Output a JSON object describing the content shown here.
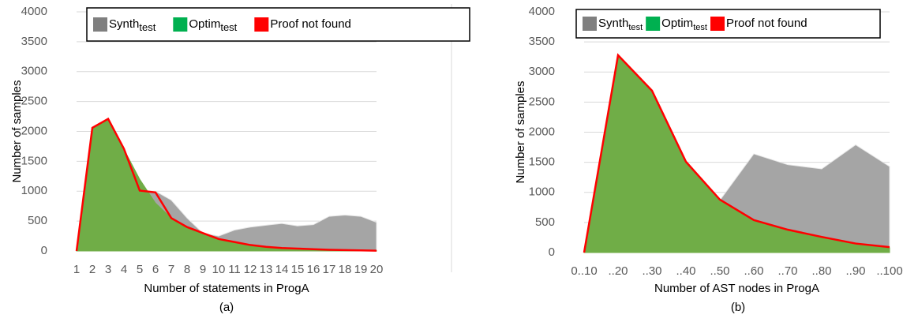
{
  "chart_data": [
    {
      "type": "area",
      "xlabel": "Number of statements in ProgA",
      "ylabel": "Number of samples",
      "caption": "(a)",
      "categories": [
        "1",
        "2",
        "3",
        "4",
        "5",
        "6",
        "7",
        "8",
        "9",
        "10",
        "11",
        "12",
        "13",
        "14",
        "15",
        "16",
        "17",
        "18",
        "19",
        "20"
      ],
      "ylim": [
        0,
        4000
      ],
      "yticks": [
        0,
        500,
        1000,
        1500,
        2000,
        2500,
        3000,
        3500,
        4000
      ],
      "grid": true,
      "series": [
        {
          "name": "Synth",
          "subscript": "test",
          "color": "#a5a5a5",
          "legend_color": "#7f7f7f",
          "style": "area",
          "values": [
            50,
            130,
            350,
            700,
            1000,
            1000,
            850,
            550,
            300,
            250,
            350,
            400,
            430,
            460,
            420,
            440,
            580,
            600,
            580,
            480
          ]
        },
        {
          "name": "Optim",
          "subscript": "test",
          "color": "#70ad47",
          "legend_color": "#00b050",
          "style": "area",
          "values": [
            0,
            2050,
            2200,
            1700,
            1200,
            800,
            550,
            400,
            300,
            200,
            150,
            100,
            70,
            50,
            40,
            30,
            20,
            15,
            10,
            5
          ]
        },
        {
          "name": "Proof not found",
          "color": "#ff0000",
          "legend_color": "#ff0000",
          "style": "line",
          "values": [
            0,
            2060,
            2210,
            1710,
            1010,
            980,
            550,
            400,
            300,
            200,
            150,
            100,
            70,
            50,
            40,
            30,
            20,
            15,
            10,
            5
          ]
        }
      ]
    },
    {
      "type": "area",
      "xlabel": "Number of AST nodes in ProgA",
      "ylabel": "Number of samples",
      "caption": "(b)",
      "categories": [
        "0..10",
        "..20",
        "..30",
        "..40",
        "..50",
        "..60",
        "..70",
        "..80",
        "..90",
        "..100"
      ],
      "ylim": [
        0,
        4000
      ],
      "yticks": [
        0,
        500,
        1000,
        1500,
        2000,
        2500,
        3000,
        3500,
        4000
      ],
      "grid": true,
      "series": [
        {
          "name": "Synth",
          "subscript": "test",
          "color": "#a5a5a5",
          "legend_color": "#7f7f7f",
          "style": "area",
          "values": [
            30,
            100,
            420,
            680,
            870,
            1640,
            1460,
            1390,
            1790,
            1430
          ]
        },
        {
          "name": "Optim",
          "subscript": "test",
          "color": "#70ad47",
          "legend_color": "#00b050",
          "style": "area",
          "values": [
            0,
            3270,
            2680,
            1500,
            870,
            530,
            370,
            250,
            140,
            80
          ]
        },
        {
          "name": "Proof not found",
          "color": "#ff0000",
          "legend_color": "#ff0000",
          "style": "line",
          "values": [
            0,
            3280,
            2690,
            1510,
            880,
            540,
            380,
            260,
            150,
            90
          ]
        }
      ]
    }
  ]
}
